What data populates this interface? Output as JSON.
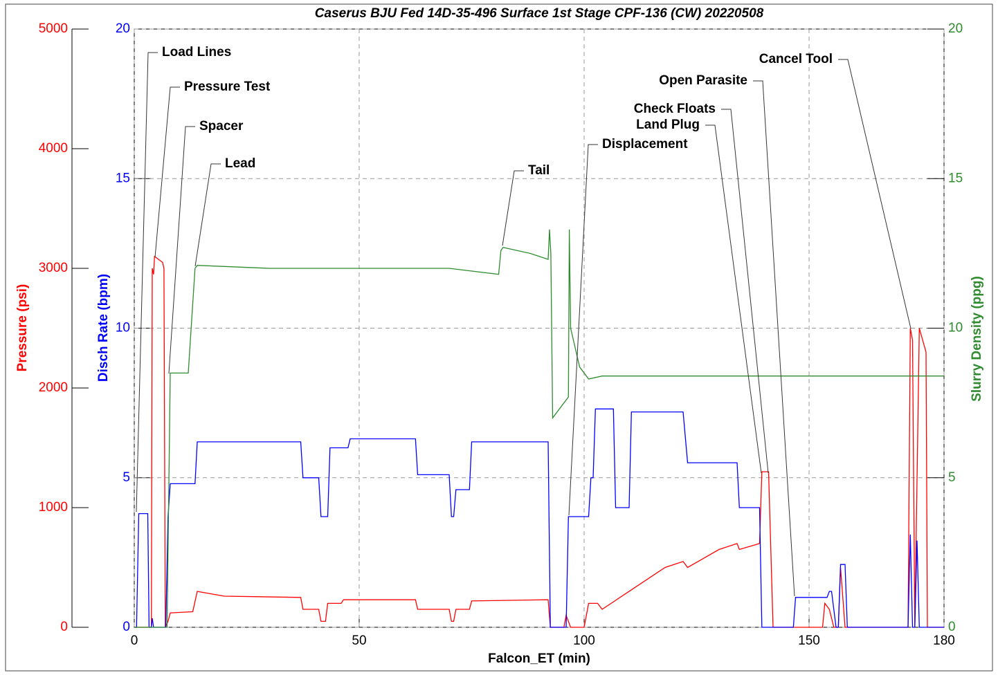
{
  "chart_data": {
    "type": "line",
    "title": "Caserus BJU Fed 14D-35-496 Surface 1st Stage CPF-136 (CW) 20220508",
    "xlabel": "Falcon_ET (min)",
    "ylabel": "Pressure (psi)",
    "y2label": "Disch Rate (bpm)",
    "y3label": "Slurry Density (ppg)",
    "xlim": [
      0,
      180
    ],
    "xticks": [
      0,
      50,
      100,
      150,
      180
    ],
    "ylim": [
      0,
      5000
    ],
    "yticks": [
      0,
      1000,
      2000,
      3000,
      4000,
      5000
    ],
    "ycolor": "#ff0000",
    "y2lim": [
      0,
      20
    ],
    "y2ticks": [
      0,
      5,
      10,
      15,
      20
    ],
    "y2color": "#0000ff",
    "y3lim": [
      0,
      20
    ],
    "y3ticks": [
      0,
      5,
      10,
      15,
      20
    ],
    "y3color": "#2e8b2e",
    "grid": true,
    "annotations": [
      "Load Lines",
      "Pressure Test",
      "Spacer",
      "Lead",
      "Tail",
      "Displacement",
      "Check Floats",
      "Land Plug",
      "Open Parasite",
      "Cancel Tool"
    ],
    "series": [
      {
        "color": "#ff0000",
        "axis": "y",
        "x": [
          0,
          3.8,
          4,
          4.3,
          4.5,
          6.3,
          6.6,
          6.9,
          7.5,
          8,
          13,
          14,
          20,
          37,
          37.5,
          41,
          41.5,
          42.5,
          43,
          46,
          46.5,
          62.5,
          63,
          70,
          70.5,
          71,
          71.5,
          74.5,
          75,
          92,
          92.5,
          95.5,
          96,
          97,
          100,
          101,
          103,
          104,
          110,
          118,
          122,
          123,
          130,
          134,
          134.5,
          139,
          139.5,
          141,
          142,
          153,
          153.5,
          154.5,
          155.5,
          156.5,
          157,
          158,
          172,
          172.5,
          173,
          173.5,
          174.5,
          176,
          176.3,
          180
        ],
        "values": [
          0,
          0,
          3000,
          2950,
          3100,
          3050,
          3000,
          0,
          50,
          120,
          130,
          300,
          260,
          250,
          150,
          150,
          50,
          50,
          200,
          200,
          230,
          230,
          150,
          150,
          50,
          50,
          150,
          150,
          220,
          230,
          0,
          0,
          100,
          0,
          0,
          200,
          200,
          150,
          300,
          500,
          550,
          500,
          650,
          700,
          650,
          700,
          1300,
          1300,
          0,
          0,
          200,
          150,
          0,
          0,
          500,
          0,
          0,
          2500,
          2400,
          0,
          2500,
          2300,
          0,
          0
        ]
      },
      {
        "color": "#0000ff",
        "axis": "y2",
        "x": [
          0,
          0.5,
          1,
          3,
          3.3,
          3.8,
          4,
          4.3,
          7,
          7.5,
          8,
          13.5,
          14,
          37,
          37.5,
          41,
          41.5,
          43,
          43.5,
          47.5,
          48,
          62.5,
          63,
          70,
          70.5,
          71,
          71.5,
          74.5,
          75,
          92,
          92.5,
          96,
          96.5,
          101,
          101.5,
          102,
          102.5,
          106.5,
          107,
          110,
          110.5,
          122,
          123,
          134,
          134.5,
          139,
          139.5,
          146.5,
          147,
          154,
          154.5,
          155,
          156,
          156.5,
          157,
          158,
          158.5,
          172,
          172.5,
          173,
          173.5,
          174,
          174.5,
          180
        ],
        "values": [
          0,
          0,
          3.8,
          3.8,
          0,
          0,
          0.3,
          0,
          0,
          3.7,
          4.8,
          4.8,
          6.2,
          6.2,
          5,
          5,
          3.7,
          3.7,
          6,
          6,
          6.3,
          6.3,
          5.1,
          5.1,
          3.7,
          3.7,
          4.6,
          4.6,
          6.2,
          6.2,
          0,
          0,
          3.7,
          3.7,
          5,
          5,
          7.3,
          7.3,
          4,
          4,
          7.2,
          7.2,
          5.5,
          5.5,
          4,
          4,
          0,
          0,
          1,
          1,
          1.2,
          1.2,
          0,
          0,
          2.1,
          2.1,
          0,
          0,
          3.1,
          0,
          0,
          2.9,
          0,
          0
        ]
      },
      {
        "color": "#2e8b2e",
        "axis": "y3",
        "x": [
          0,
          7.3,
          8,
          12,
          13.5,
          14,
          30,
          50,
          70,
          81,
          81.5,
          82,
          88,
          92,
          92.3,
          92.6,
          93,
          96.5,
          96.7,
          97,
          99,
          101,
          104,
          180
        ],
        "values": [
          0,
          0,
          8.5,
          8.5,
          12,
          12.1,
          12,
          12,
          12,
          11.8,
          12.6,
          12.7,
          12.5,
          12.3,
          13.3,
          12.5,
          7,
          7.7,
          13.3,
          10,
          8.7,
          8.3,
          8.4,
          8.4
        ]
      }
    ]
  }
}
